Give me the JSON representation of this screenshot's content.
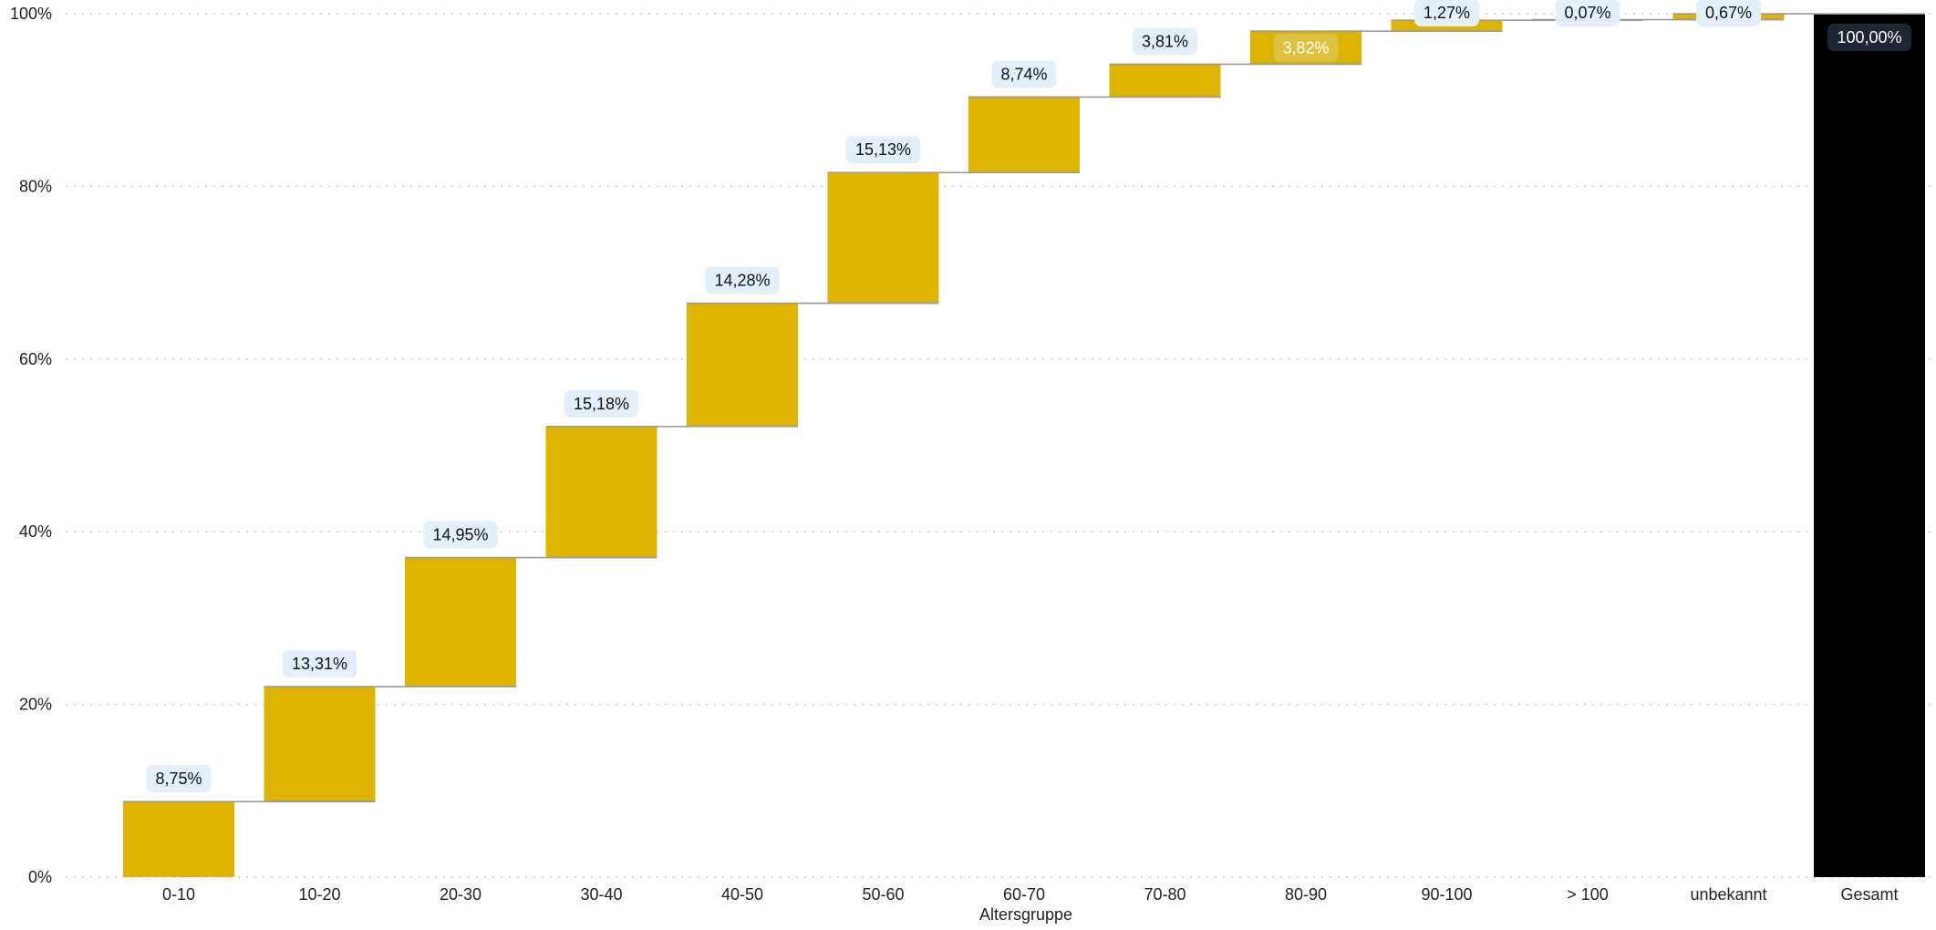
{
  "chart_data": {
    "type": "bar",
    "subtype": "waterfall",
    "categories": [
      "0-10",
      "10-20",
      "20-30",
      "30-40",
      "40-50",
      "50-60",
      "60-70",
      "70-80",
      "80-90",
      "90-100",
      "> 100",
      "unbekannt",
      "Gesamt"
    ],
    "values": [
      8.75,
      13.31,
      14.95,
      15.18,
      14.28,
      15.13,
      8.74,
      3.81,
      3.82,
      1.27,
      0.07,
      0.67,
      100.0
    ],
    "labels": [
      "8,75%",
      "13,31%",
      "14,95%",
      "15,18%",
      "14,28%",
      "15,13%",
      "8,74%",
      "3,81%",
      "3,82%",
      "1,27%",
      "0,07%",
      "0,67%",
      "100,00%"
    ],
    "total_index": 12,
    "xlabel": "Altersgruppe",
    "ylabel": "",
    "ylim": [
      0,
      100
    ],
    "yticks": [
      0,
      20,
      40,
      60,
      80,
      100
    ],
    "ytick_labels": [
      "0%",
      "20%",
      "40%",
      "60%",
      "80%",
      "100%"
    ],
    "grid": "horizontal dotted",
    "colors": {
      "increment": "#dbb300",
      "total": "#000000",
      "connector": "#999999",
      "grid": "#cccccc",
      "label_bg": "#e3f0fb",
      "label_bg_dark": "#1c2733",
      "label_text": "#111111",
      "label_text_dark": "#ffffff",
      "axis_text": "#222222"
    }
  }
}
